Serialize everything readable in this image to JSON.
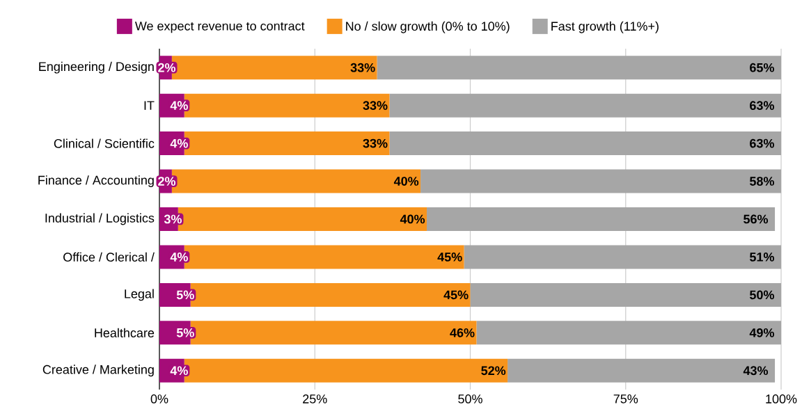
{
  "chart_data": {
    "type": "bar",
    "orientation": "horizontal",
    "stacked": true,
    "categories": [
      "Engineering / Design",
      "IT",
      "Clinical / Scientific",
      "Finance / Accounting",
      "Industrial / Logistics",
      "Office / Clerical /",
      "Legal",
      "Healthcare",
      "Creative / Marketing"
    ],
    "series": [
      {
        "name": "We expect revenue to contract",
        "color": "#a50c78",
        "values": [
          2,
          4,
          4,
          2,
          3,
          4,
          5,
          5,
          4
        ],
        "value_labels": [
          "2%",
          "4%",
          "4%",
          "2%",
          "3%",
          "4%",
          "5%",
          "5%",
          "4%"
        ]
      },
      {
        "name": "No / slow growth (0% to 10%)",
        "color": "#f7941d",
        "values": [
          33,
          33,
          33,
          40,
          40,
          45,
          45,
          46,
          52
        ],
        "value_labels": [
          "33%",
          "33%",
          "33%",
          "40%",
          "40%",
          "45%",
          "45%",
          "46%",
          "52%"
        ]
      },
      {
        "name": "Fast growth (11%+)",
        "color": "#a6a6a6",
        "values": [
          65,
          63,
          63,
          58,
          56,
          51,
          50,
          49,
          43
        ],
        "value_labels": [
          "65%",
          "63%",
          "63%",
          "58%",
          "56%",
          "51%",
          "50%",
          "49%",
          "43%"
        ]
      }
    ],
    "xlim": [
      0,
      100
    ],
    "xticks": [
      {
        "value": 0,
        "label": "0%"
      },
      {
        "value": 25,
        "label": "25%"
      },
      {
        "value": 50,
        "label": "50%"
      },
      {
        "value": 75,
        "label": "75%"
      },
      {
        "value": 100,
        "label": "100%"
      }
    ],
    "grid": "x",
    "legend": "top"
  }
}
